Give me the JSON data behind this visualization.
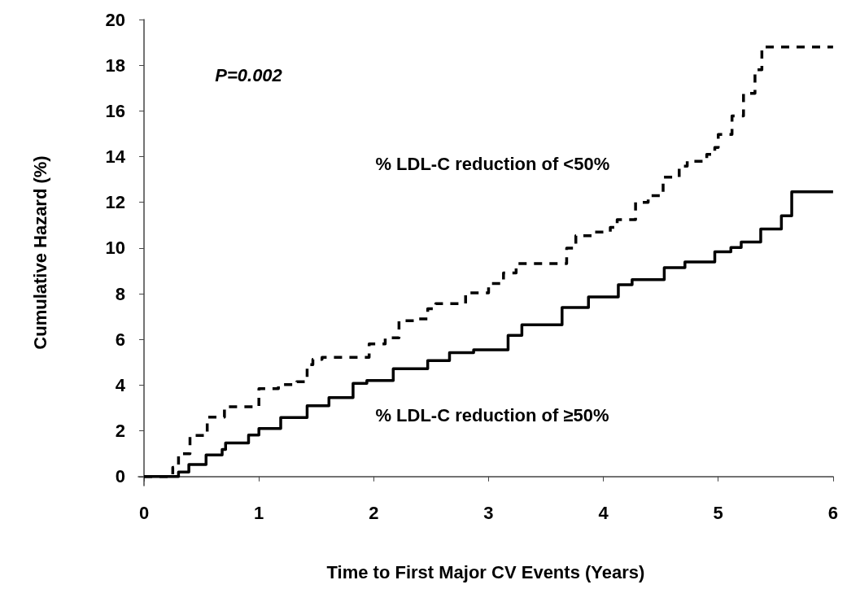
{
  "chart_data": {
    "type": "step",
    "xlabel": "Time to First Major CV Events (Years)",
    "ylabel": "Cumulative Hazard (%)",
    "annotations": [
      "P=0.002"
    ],
    "xlim": [
      -0.05,
      6
    ],
    "xticks": [
      0,
      1,
      2,
      3,
      4,
      5,
      6
    ],
    "ylim": [
      -0.4,
      20
    ],
    "yticks": [
      0,
      2,
      4,
      6,
      8,
      10,
      12,
      14,
      16,
      18,
      20
    ],
    "grid": false,
    "legend": false,
    "marker": "none",
    "series": [
      {
        "name": "% LDL-C reduction of <50%",
        "color": "#000000",
        "line_style": "dashed",
        "x": [
          0,
          0.25,
          0.3,
          0.4,
          0.55,
          0.7,
          1.0,
          1.17,
          1.33,
          1.42,
          1.47,
          1.55,
          1.96,
          2.1,
          2.22,
          2.38,
          2.47,
          2.54,
          2.8,
          3.0,
          3.13,
          3.24,
          3.68,
          3.76,
          3.92,
          4.06,
          4.12,
          4.28,
          4.39,
          4.52,
          4.66,
          4.73,
          4.9,
          4.97,
          5.0,
          5.12,
          5.22,
          5.32,
          5.38,
          6.0
        ],
        "values": [
          0,
          0.4,
          1.0,
          1.8,
          2.6,
          3.05,
          3.85,
          4.02,
          4.15,
          4.9,
          5.13,
          5.22,
          5.8,
          6.07,
          6.82,
          6.9,
          7.34,
          7.57,
          8.04,
          8.45,
          8.91,
          9.32,
          10.0,
          10.54,
          10.7,
          10.9,
          11.24,
          12.0,
          12.29,
          13.1,
          13.58,
          13.8,
          14.1,
          14.4,
          14.97,
          15.78,
          16.77,
          17.8,
          18.8,
          18.8
        ]
      },
      {
        "name": "% LDL-C reduction of ≥50%",
        "color": "#000000",
        "line_style": "solid",
        "x": [
          0,
          0.23,
          0.3,
          0.39,
          0.54,
          0.68,
          0.71,
          0.91,
          1.0,
          1.19,
          1.42,
          1.61,
          1.82,
          1.94,
          2.17,
          2.47,
          2.66,
          2.87,
          3.17,
          3.29,
          3.64,
          3.87,
          4.13,
          4.25,
          4.53,
          4.71,
          4.97,
          5.11,
          5.2,
          5.37,
          5.55,
          5.64,
          6.0
        ],
        "values": [
          0,
          0,
          0.2,
          0.53,
          0.94,
          1.18,
          1.47,
          1.82,
          2.1,
          2.58,
          3.1,
          3.45,
          4.08,
          4.2,
          4.72,
          5.07,
          5.42,
          5.55,
          6.18,
          6.64,
          7.4,
          7.86,
          8.39,
          8.62,
          9.14,
          9.39,
          9.84,
          10.02,
          10.26,
          10.83,
          11.41,
          12.46,
          12.46
        ]
      }
    ]
  }
}
